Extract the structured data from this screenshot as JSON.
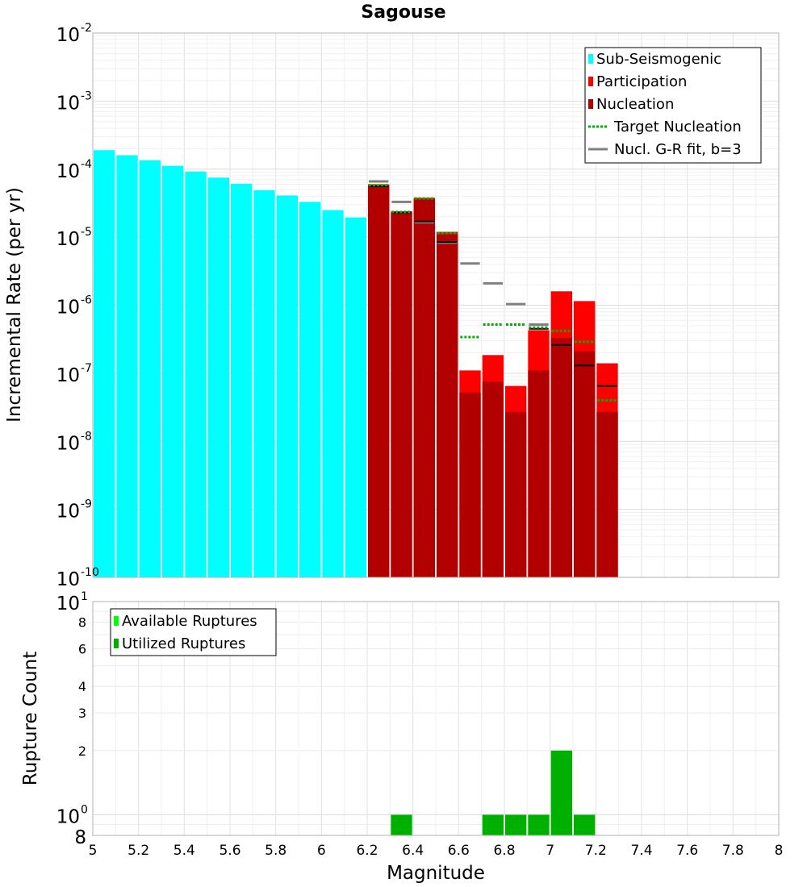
{
  "chart_data": [
    {
      "type": "bar",
      "title": "Sagouse",
      "xlabel": "",
      "ylabel": "Incremental Rate (per yr)",
      "xlim": [
        5,
        8
      ],
      "ylim": [
        1e-10,
        0.01
      ],
      "yscale": "log",
      "grid": true,
      "legend_position": "top-right",
      "bin_width": 0.1,
      "y_tick_exponents": [
        "-10",
        "-9",
        "-8",
        "-7",
        "-6",
        "-5",
        "-4",
        "-3",
        "-2"
      ],
      "y_tick_base": "10",
      "colors": {
        "sub_seismogenic": "#00ffff",
        "participation": "#ff0000",
        "nucleation": "#b20000",
        "target_nucleation": "#00b000",
        "gr_fit": "#808080",
        "nucleation_marker": "#000000"
      },
      "legend": [
        {
          "key": "sub",
          "label": "Sub-Seismogenic",
          "style": "box",
          "color": "#00ffff"
        },
        {
          "key": "part",
          "label": "Participation",
          "style": "box",
          "color": "#ff0000"
        },
        {
          "key": "nucl",
          "label": "Nucleation",
          "style": "box",
          "color": "#b20000"
        },
        {
          "key": "target",
          "label": "Target Nucleation",
          "style": "dotted",
          "color": "#00b000"
        },
        {
          "key": "gr",
          "label": "Nucl. G-R fit, b=3",
          "style": "line",
          "color": "#808080"
        }
      ],
      "series": [
        {
          "name": "Sub-Seismogenic",
          "x": [
            5.05,
            5.15,
            5.25,
            5.35,
            5.45,
            5.55,
            5.65,
            5.75,
            5.85,
            5.95,
            6.05,
            6.15
          ],
          "values": [
            0.00019,
            0.00016,
            0.000135,
            0.000112,
            9.2e-05,
            7.5e-05,
            6.1e-05,
            4.9e-05,
            4.1e-05,
            3.3e-05,
            2.5e-05,
            1.95e-05
          ]
        },
        {
          "name": "Participation",
          "x": [
            6.25,
            6.35,
            6.45,
            6.55,
            6.65,
            6.75,
            6.85,
            6.95,
            7.05,
            7.15,
            7.25
          ],
          "values": [
            6e-05,
            2.4e-05,
            3.8e-05,
            1.2e-05,
            1.1e-07,
            1.85e-07,
            6.5e-08,
            4.3e-07,
            1.6e-06,
            1.15e-06,
            1.4e-07
          ]
        },
        {
          "name": "Nucleation",
          "x": [
            6.25,
            6.35,
            6.45,
            6.55,
            6.65,
            6.75,
            6.85,
            6.95,
            7.05,
            7.15,
            7.25
          ],
          "values": [
            5.5e-05,
            2.3e-05,
            3.6e-05,
            1.1e-05,
            5.2e-08,
            7.5e-08,
            2.7e-08,
            1.1e-07,
            3.3e-07,
            2.1e-07,
            2.7e-08
          ]
        },
        {
          "name": "Target Nucleation",
          "x": [
            6.25,
            6.35,
            6.45,
            6.55,
            6.65,
            6.75,
            6.85,
            6.95,
            7.05,
            7.15,
            7.25
          ],
          "values": [
            5.8e-05,
            2.35e-05,
            3.7e-05,
            1.15e-05,
            3.4e-07,
            5.2e-07,
            5.2e-07,
            4.7e-07,
            4.2e-07,
            2.9e-07,
            4e-08
          ]
        },
        {
          "name": "Nucl. G-R fit, b=3",
          "x": [
            6.25,
            6.35,
            6.45,
            6.55,
            6.65,
            6.75,
            6.85,
            6.95
          ],
          "values": [
            6.6e-05,
            3.3e-05,
            1.65e-05,
            8.3e-06,
            4.1e-06,
            2.1e-06,
            1.04e-06,
            5.2e-07
          ]
        },
        {
          "name": "Nucleation marker",
          "x": [
            6.25,
            6.35,
            6.45,
            6.55,
            6.95,
            7.05,
            7.15,
            7.25
          ],
          "values": [
            5.6e-05,
            2.3e-05,
            1.7e-05,
            8.5e-06,
            4.5e-07,
            2.6e-07,
            1.3e-07,
            6.5e-08
          ]
        }
      ]
    },
    {
      "type": "bar",
      "title": "",
      "xlabel": "Magnitude",
      "ylabel": "Rupture Count",
      "xlim": [
        5,
        8
      ],
      "ylim": [
        0.8,
        10
      ],
      "yscale": "log",
      "grid": true,
      "legend_position": "top-left",
      "bin_width": 0.1,
      "x_ticks": [
        "5",
        "5.2",
        "5.4",
        "5.6",
        "5.8",
        "6",
        "6.2",
        "6.4",
        "6.6",
        "6.8",
        "7",
        "7.2",
        "7.4",
        "7.6",
        "7.8",
        "8"
      ],
      "y_ticks_small": [
        {
          "value": 8,
          "label": "8"
        },
        {
          "value": 6,
          "label": "6"
        },
        {
          "value": 4,
          "label": "4"
        },
        {
          "value": 3,
          "label": "3"
        },
        {
          "value": 2,
          "label": "2"
        }
      ],
      "y_ticks_big": [
        {
          "value": 10,
          "base": "10",
          "exp": "1"
        },
        {
          "value": 1,
          "base": "10",
          "exp": "0"
        },
        {
          "value": 0.8,
          "base": "8",
          "exp": ""
        }
      ],
      "colors": {
        "available": "#00ff00",
        "utilized": "#00b000"
      },
      "legend": [
        {
          "key": "avail",
          "label": "Available Ruptures",
          "style": "box",
          "color": "#00ff00"
        },
        {
          "key": "util",
          "label": "Utilized Ruptures",
          "style": "box",
          "color": "#00b000"
        }
      ],
      "series": [
        {
          "name": "Utilized Ruptures",
          "x": [
            6.35,
            6.75,
            6.85,
            6.95,
            7.05,
            7.15
          ],
          "values": [
            1,
            1,
            1,
            1,
            2,
            1
          ]
        }
      ]
    }
  ]
}
